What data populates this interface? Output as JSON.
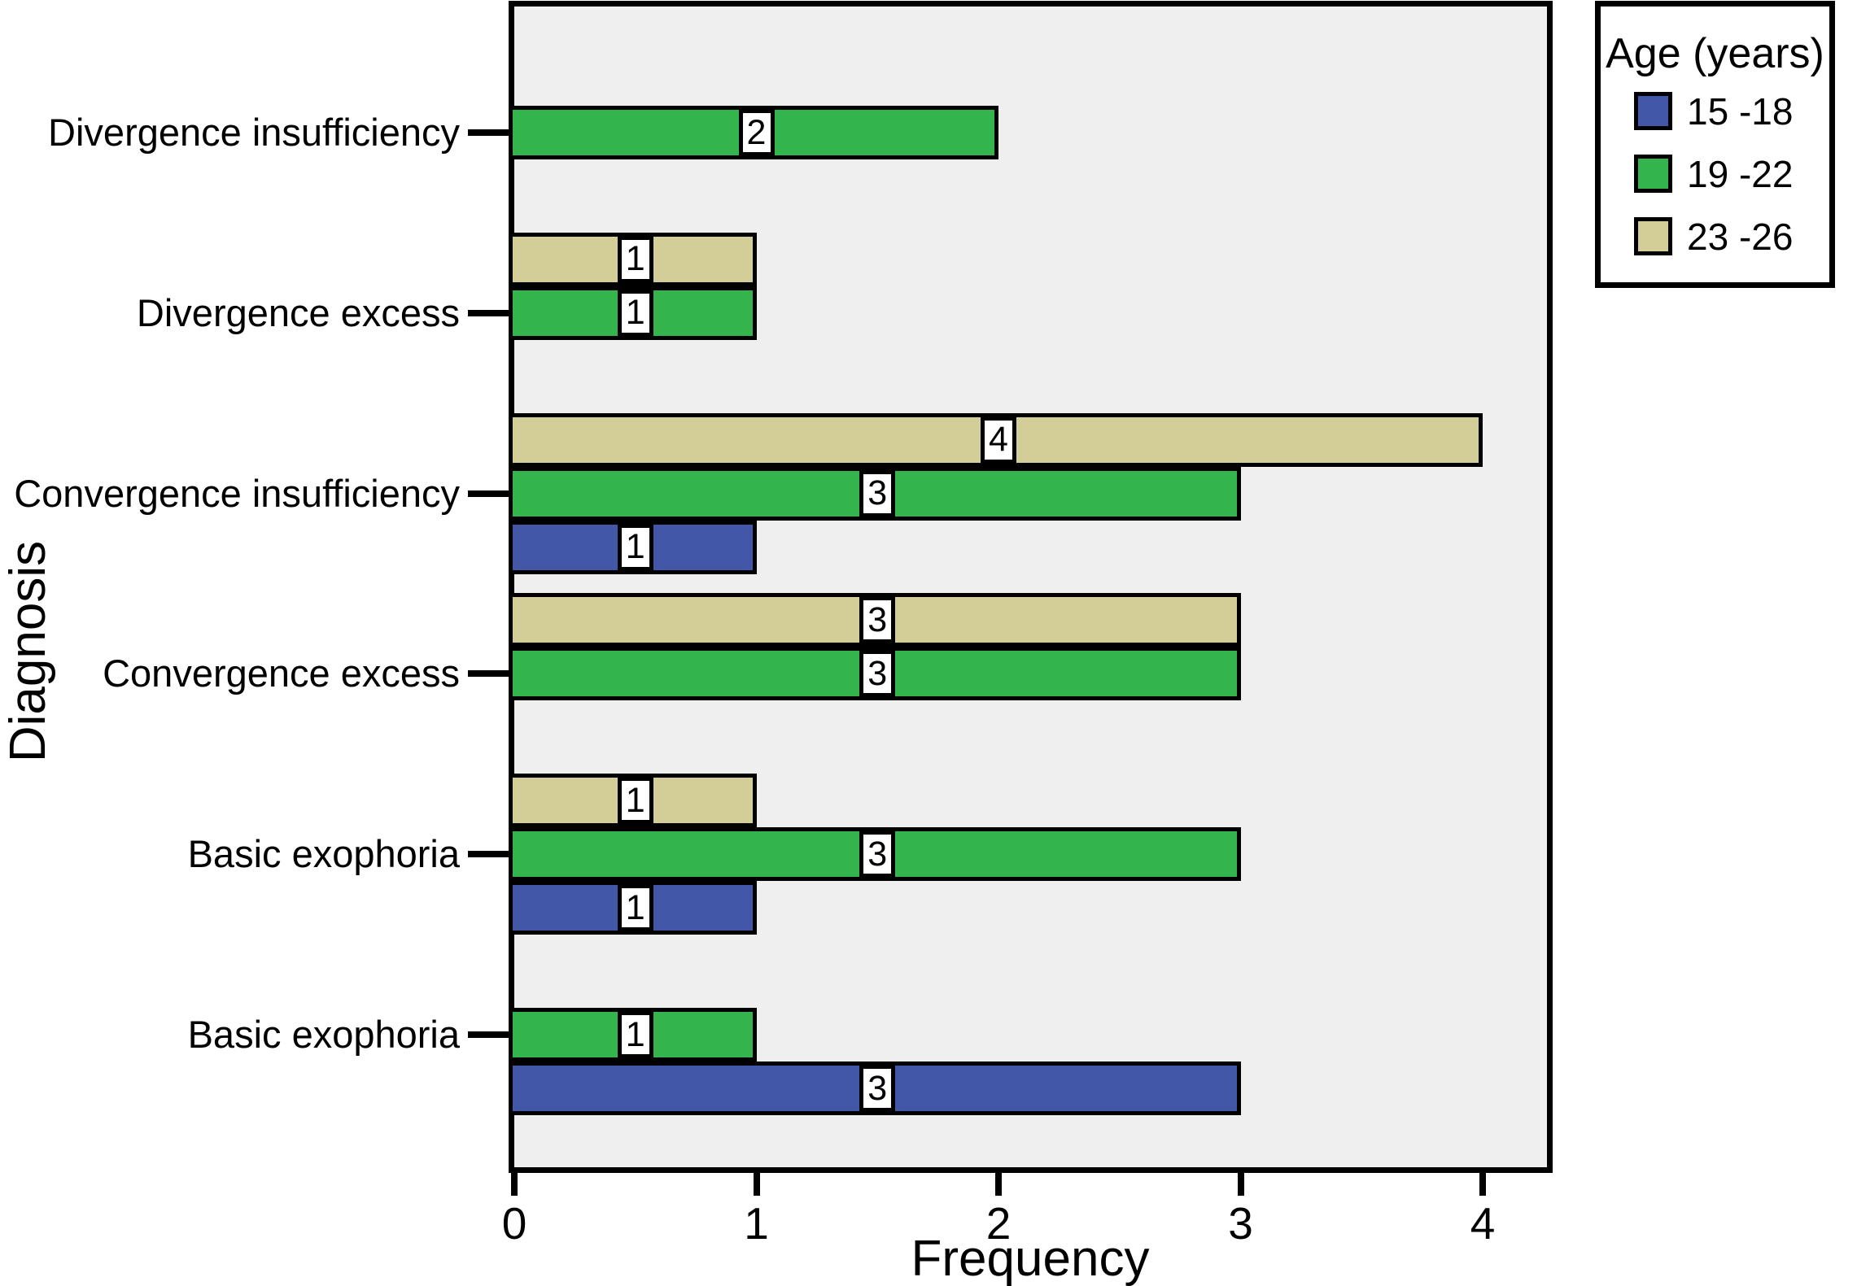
{
  "chart_data": {
    "type": "bar",
    "orientation": "horizontal",
    "title": "",
    "xlabel": "Frequency",
    "ylabel": "Diagnosis",
    "xlim": [
      0,
      4.3
    ],
    "xticks": [
      0,
      1,
      2,
      3,
      4
    ],
    "grid": false,
    "plot_background": "#EFEFEF",
    "bar_outline_color": "#000000",
    "value_labels_shown": true,
    "legend": {
      "title": "Age (years)",
      "position": "outside-top-right"
    },
    "categories": [
      "Divergence insufficiency",
      "Divergence excess",
      "Convergence insufficiency",
      "Convergence excess",
      "Basic exophoria",
      "Basic exophoria"
    ],
    "series": [
      {
        "name": "15 -18",
        "color": "#4257A7",
        "values": [
          null,
          null,
          1,
          null,
          1,
          3
        ]
      },
      {
        "name": "19 -22",
        "color": "#33B44C",
        "values": [
          2,
          1,
          3,
          3,
          3,
          1
        ]
      },
      {
        "name": "23 -26",
        "color": "#D3CD98",
        "values": [
          null,
          1,
          4,
          3,
          1,
          null
        ]
      }
    ],
    "row_order_top_to_bottom": [
      "23 -26",
      "19 -22",
      "15 -18"
    ]
  }
}
